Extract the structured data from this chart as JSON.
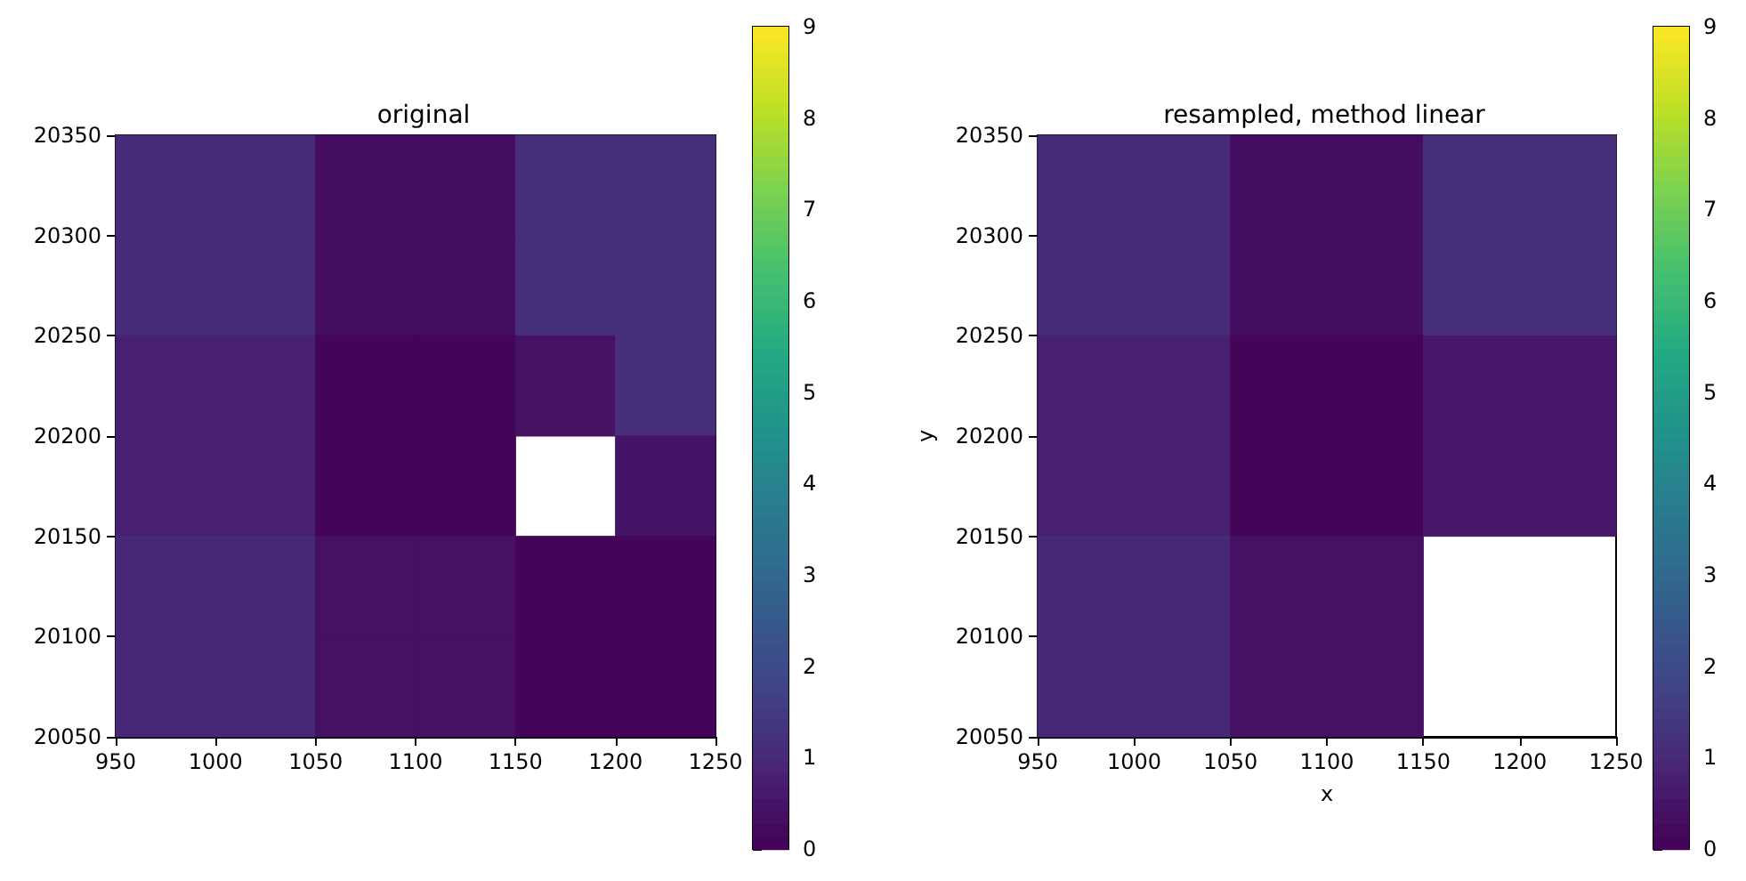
{
  "chart_data": [
    {
      "type": "heatmap",
      "title": "original",
      "cells": [
        [
          1.1,
          1.1,
          0.3,
          0.3,
          1.2,
          1.2
        ],
        [
          1.1,
          1.1,
          0.3,
          0.3,
          1.2,
          1.2
        ],
        [
          0.8,
          0.8,
          0.1,
          0.1,
          0.4,
          1.2
        ],
        [
          0.8,
          0.8,
          0.1,
          0.1,
          null,
          0.5
        ],
        [
          1.0,
          1.0,
          0.4,
          0.4,
          0.1,
          0.1
        ],
        [
          1.0,
          1.0,
          0.4,
          0.4,
          0.1,
          0.1
        ]
      ],
      "xlim": [
        950,
        1250
      ],
      "xticks": [
        950,
        1000,
        1050,
        1100,
        1150,
        1200,
        1250
      ],
      "ylim": [
        20050,
        20350
      ],
      "yticks": [
        20050,
        20100,
        20150,
        20200,
        20250,
        20300,
        20350
      ],
      "clim": [
        0,
        9
      ],
      "cticks": [
        0,
        1,
        2,
        3,
        4,
        5,
        6,
        7,
        8,
        9
      ]
    },
    {
      "type": "heatmap",
      "title": "resampled, method linear",
      "xlabel": "x",
      "ylabel": "y",
      "cells": [
        [
          1.1,
          0.3,
          1.2
        ],
        [
          0.8,
          0.1,
          0.6
        ],
        [
          1.0,
          0.4,
          null
        ]
      ],
      "xlim": [
        950,
        1250
      ],
      "xticks": [
        950,
        1000,
        1050,
        1100,
        1150,
        1200,
        1250
      ],
      "ylim": [
        20050,
        20350
      ],
      "yticks": [
        20050,
        20100,
        20150,
        20200,
        20250,
        20300,
        20350
      ],
      "clim": [
        0,
        9
      ],
      "cticks": [
        0,
        1,
        2,
        3,
        4,
        5,
        6,
        7,
        8,
        9
      ]
    }
  ]
}
